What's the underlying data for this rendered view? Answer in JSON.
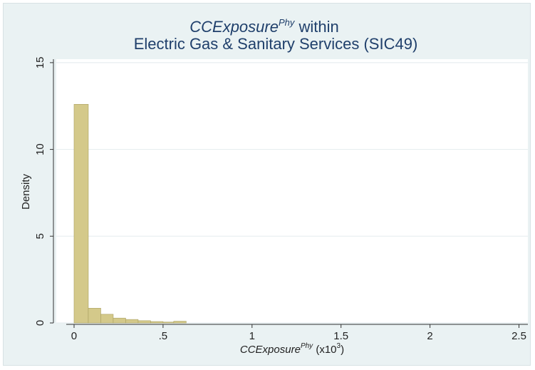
{
  "chart_data": {
    "type": "bar",
    "title": {
      "line1_italic": "CCExposure",
      "line1_sup": "Phy",
      "line1_rest": " within",
      "line2": "Electric Gas & Sanitary Services (SIC49)"
    },
    "xlabel": {
      "italic": "CCExposure",
      "sup": "Phy",
      "rest_open": " (x10",
      "rest_sup": "3",
      "rest_close": ")"
    },
    "ylabel": "Density",
    "xlim": [
      -0.1,
      2.55
    ],
    "ylim": [
      0,
      15.2
    ],
    "x_ticks": [
      {
        "value": 0,
        "label": "0"
      },
      {
        "value": 0.5,
        "label": ".5"
      },
      {
        "value": 1,
        "label": "1"
      },
      {
        "value": 1.5,
        "label": "1.5"
      },
      {
        "value": 2,
        "label": "2"
      },
      {
        "value": 2.5,
        "label": "2.5"
      }
    ],
    "y_ticks": [
      {
        "value": 0,
        "label": "0"
      },
      {
        "value": 5,
        "label": "5"
      },
      {
        "value": 10,
        "label": "10"
      },
      {
        "value": 15,
        "label": "15"
      }
    ],
    "grid": true,
    "bins": [
      {
        "x0": 0.0,
        "x1": 0.08,
        "value": 12.6
      },
      {
        "x0": 0.08,
        "x1": 0.15,
        "value": 0.85
      },
      {
        "x0": 0.15,
        "x1": 0.22,
        "value": 0.5
      },
      {
        "x0": 0.22,
        "x1": 0.29,
        "value": 0.28
      },
      {
        "x0": 0.29,
        "x1": 0.36,
        "value": 0.2
      },
      {
        "x0": 0.36,
        "x1": 0.43,
        "value": 0.13
      },
      {
        "x0": 0.43,
        "x1": 0.5,
        "value": 0.08
      },
      {
        "x0": 0.5,
        "x1": 0.56,
        "value": 0.05
      },
      {
        "x0": 0.56,
        "x1": 0.63,
        "value": 0.1
      }
    ],
    "colors": {
      "bar_fill": "#d4c98a",
      "bar_stroke": "#a89f5f",
      "plot_bg": "#ffffff",
      "frame_bg": "#eaf2f3",
      "grid": "#e7eef0",
      "title": "#1f3f6b"
    }
  }
}
